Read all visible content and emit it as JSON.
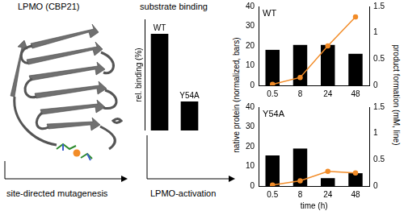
{
  "diagram": {
    "structure_label": "LPMO (CBP21)",
    "steps": [
      "site-directed mutagenesis",
      "LPMO-activation"
    ]
  },
  "chart_data": [
    {
      "type": "bar",
      "title": "substrate binding",
      "y_label": "rel. binding (%)",
      "categories": [
        "WT",
        "Y54A"
      ],
      "values": [
        100,
        30
      ],
      "color": "#000000",
      "ylim": [
        0,
        115
      ],
      "yticks": [],
      "tick_labels": false,
      "grid": false
    },
    {
      "type": "bar",
      "title": "WT",
      "y_label": "native protein (normalized, bars)",
      "y2_label": "product formation (mM, line)",
      "categories": [
        "0.5",
        "8",
        "24",
        "48"
      ],
      "series": [
        {
          "type": "bar",
          "color": "#000000",
          "values": [
            18,
            20.5,
            20.5,
            16
          ]
        },
        {
          "type": "line",
          "axis": "y2",
          "color": "#f28c28",
          "marker": "circle",
          "line_style": "solid",
          "values": [
            0.02,
            0.15,
            0.75,
            1.3
          ]
        }
      ],
      "ylim": [
        0,
        40
      ],
      "yticks": [
        0,
        10,
        20,
        30,
        40
      ],
      "y2lim": [
        0,
        1.5
      ],
      "y2ticks": [
        0,
        0.5,
        1,
        1.5
      ],
      "grid": false
    },
    {
      "type": "bar",
      "title": "Y54A",
      "x_label": "time (h)",
      "categories": [
        "0.5",
        "8",
        "24",
        "48"
      ],
      "series": [
        {
          "type": "bar",
          "color": "#000000",
          "values": [
            15.5,
            19,
            4,
            6.5
          ]
        },
        {
          "type": "line",
          "axis": "y2",
          "color": "#f28c28",
          "marker": "circle",
          "line_style": "solid",
          "values": [
            0.02,
            0.1,
            0.28,
            0.25
          ]
        }
      ],
      "ylim": [
        0,
        40
      ],
      "yticks": [
        0,
        10,
        20,
        30,
        40
      ],
      "y2lim": [
        0,
        1.5
      ],
      "y2ticks": [
        0,
        0.5,
        1,
        1.5
      ],
      "grid": false
    }
  ]
}
